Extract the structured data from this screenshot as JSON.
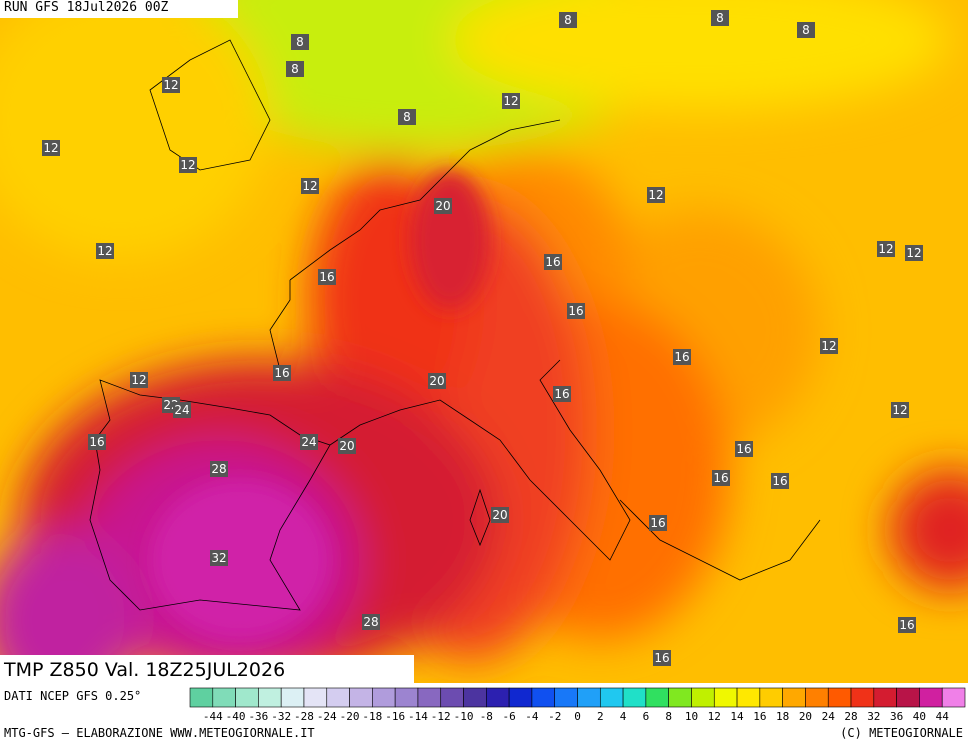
{
  "header": {
    "run": "RUN GFS 18Jul2026 00Z"
  },
  "map": {
    "contour_labels": [
      8,
      8,
      8,
      8,
      8,
      8,
      12,
      12,
      12,
      12,
      12,
      20,
      12,
      12,
      16,
      12,
      12,
      16,
      16,
      12,
      16,
      16,
      12,
      20,
      16,
      22,
      24,
      12,
      16,
      24,
      20,
      16,
      16,
      16,
      28,
      20,
      16,
      32,
      28,
      16,
      16
    ]
  },
  "footer": {
    "title": "TMP Z850 Val. 18Z25JUL2026",
    "source": "DATI NCEP GFS 0.25°",
    "credit": "MTG-GFS — ELABORAZIONE WWW.METEOGIORNALE.IT",
    "copyright": "(C) METEOGIORNALE"
  },
  "legend": {
    "ticks": [
      -44,
      -40,
      -36,
      -32,
      -28,
      -24,
      -20,
      -18,
      -16,
      -14,
      -12,
      -10,
      -8,
      -6,
      -4,
      -2,
      0,
      2,
      4,
      6,
      8,
      10,
      12,
      14,
      16,
      18,
      20,
      24,
      28,
      32,
      36,
      40,
      44
    ],
    "colors": [
      "#5fd0a0",
      "#80dcb8",
      "#a0e8cc",
      "#c0f0e0",
      "#dcf0f4",
      "#e4e4f6",
      "#d4cdf0",
      "#c4b4e6",
      "#b09cdc",
      "#9c84d0",
      "#8868c0",
      "#6c4cb0",
      "#4c34a0",
      "#2c20b0",
      "#1028d0",
      "#1050f0",
      "#1878f8",
      "#20a0f8",
      "#20c8f0",
      "#20e0c8",
      "#30e060",
      "#80e820",
      "#c0f000",
      "#f0f800",
      "#ffe800",
      "#ffcc00",
      "#ffa800",
      "#ff8000",
      "#ff5a00",
      "#f03218",
      "#d41c30",
      "#b81448",
      "#d020a0",
      "#f080e8"
    ]
  }
}
